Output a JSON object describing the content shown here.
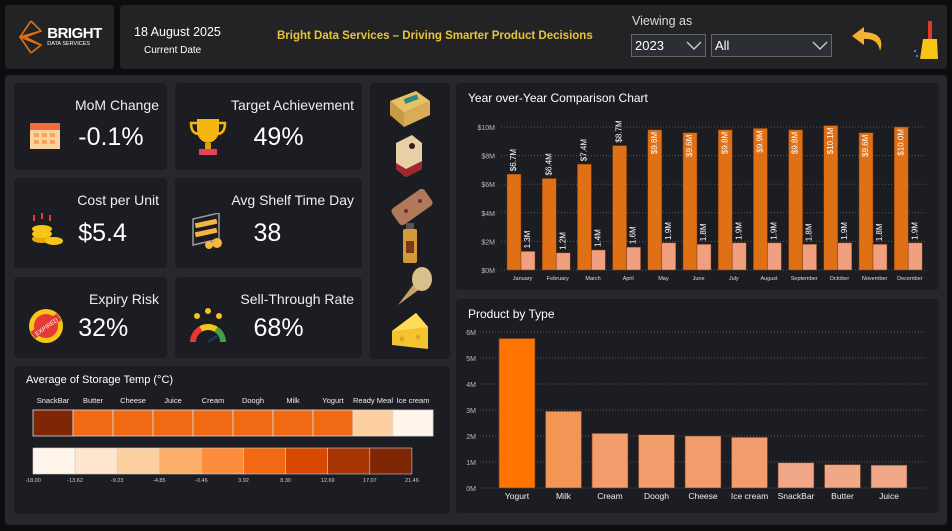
{
  "header": {
    "logo_main": "BRIGHT",
    "logo_sub": "DATA SERVICES",
    "date": "18 August 2025",
    "date_label": "Current Date",
    "title": "Bright Data Services – Driving Smarter Product Decisions",
    "viewing_label": "Viewing as",
    "year_select": "2023",
    "filter_select": "All",
    "back_icon": "undo-arrow-icon",
    "clear_icon": "broom-icon"
  },
  "kpis": [
    {
      "label": "MoM Change",
      "value": "-0.1%",
      "icon": "calendar-icon"
    },
    {
      "label": "Target Achievement",
      "value": "49%",
      "icon": "trophy-icon"
    },
    {
      "label": "Cost per Unit",
      "value": "$5.4",
      "icon": "coins-icon"
    },
    {
      "label": "Avg Shelf Time Day",
      "value": "38",
      "icon": "shelf-icon"
    },
    {
      "label": "Expiry Risk",
      "value": "32%",
      "icon": "expired-stamp-icon",
      "stamp_text": "EXPIRED"
    },
    {
      "label": "Sell-Through Rate",
      "value": "68%",
      "icon": "gauge-icon"
    }
  ],
  "product_icons": [
    "butter-box-icon",
    "milk-carton-icon",
    "snackbar-icon",
    "juice-bottle-icon",
    "ice-cream-icon",
    "cheese-icon"
  ],
  "colors": {
    "accent": "#e07016",
    "light": "#f0a080",
    "title": "#e8c43a",
    "yogurt": "#ff7300"
  },
  "heatmap": {
    "title": "Average of Storage Temp (°C)",
    "categories": [
      "SnackBar",
      "Butter",
      "Cheese",
      "Juice",
      "Cream",
      "Doogh",
      "Milk",
      "Yogurt",
      "Ready Meal",
      "Ice cream"
    ],
    "colors": [
      "#7f2704",
      "#f16913",
      "#f16913",
      "#f16913",
      "#f16913",
      "#f16913",
      "#f16913",
      "#f16913",
      "#fdd0a2",
      "#fff5eb"
    ],
    "legend_colors": [
      "#fff5eb",
      "#fee6ce",
      "#fdd0a2",
      "#fdae6b",
      "#fd8d3c",
      "#f16913",
      "#d94801",
      "#a63603",
      "#7f2704"
    ],
    "legend_ticks": [
      "-18.00",
      "-13.62",
      "-9.23",
      "-4.85",
      "-0.46",
      "3.92",
      "8.30",
      "12.69",
      "17.07",
      "21.46"
    ]
  },
  "chart_data": [
    {
      "type": "bar",
      "title": "Year over-Year Comparison Chart",
      "categories": [
        "January",
        "February",
        "March",
        "April",
        "May",
        "June",
        "July",
        "August",
        "September",
        "October",
        "November",
        "December"
      ],
      "series": [
        {
          "values": [
            6.7,
            6.4,
            7.4,
            8.7,
            9.8,
            9.6,
            9.8,
            9.9,
            9.8,
            10.1,
            9.6,
            10.0
          ],
          "labels": [
            "$6.7M",
            "$6.4M",
            "$7.4M",
            "$8.7M",
            "$9.8M",
            "$9.6M",
            "$9.8M",
            "$9.9M",
            "$9.8M",
            "$10.1M",
            "$9.6M",
            "$10.0M"
          ],
          "color": "#e07016"
        },
        {
          "values": [
            1.3,
            1.2,
            1.4,
            1.6,
            1.9,
            1.8,
            1.9,
            1.9,
            1.8,
            1.9,
            1.8,
            1.9
          ],
          "labels": [
            "1.3M",
            "1.2M",
            "1.4M",
            "1.6M",
            "1.9M",
            "1.8M",
            "1.9M",
            "1.9M",
            "1.8M",
            "1.9M",
            "1.8M",
            "1.9M"
          ],
          "color": "#f0a080"
        }
      ],
      "yunit": "M",
      "ylim": [
        0,
        10
      ],
      "yticks": [
        "$0M",
        "$2M",
        "$4M",
        "$6M",
        "$8M",
        "$10M"
      ],
      "grid": true
    },
    {
      "type": "bar",
      "title": "Product by Type",
      "categories": [
        "Yogurt",
        "Milk",
        "Cream",
        "Doogh",
        "Cheese",
        "Ice cream",
        "SnackBar",
        "Butter",
        "Juice"
      ],
      "values": [
        5.75,
        2.95,
        2.1,
        2.05,
        2.0,
        1.95,
        0.97,
        0.9,
        0.88
      ],
      "colors": [
        "#ff7300",
        "#f29656",
        "#f39d6c",
        "#f39d6c",
        "#f39d6c",
        "#f39d6c",
        "#f0a888",
        "#f0a888",
        "#f0a888"
      ],
      "ylim": [
        0,
        6
      ],
      "yticks": [
        "0M",
        "1M",
        "2M",
        "3M",
        "4M",
        "5M",
        "6M"
      ],
      "grid": true
    }
  ]
}
